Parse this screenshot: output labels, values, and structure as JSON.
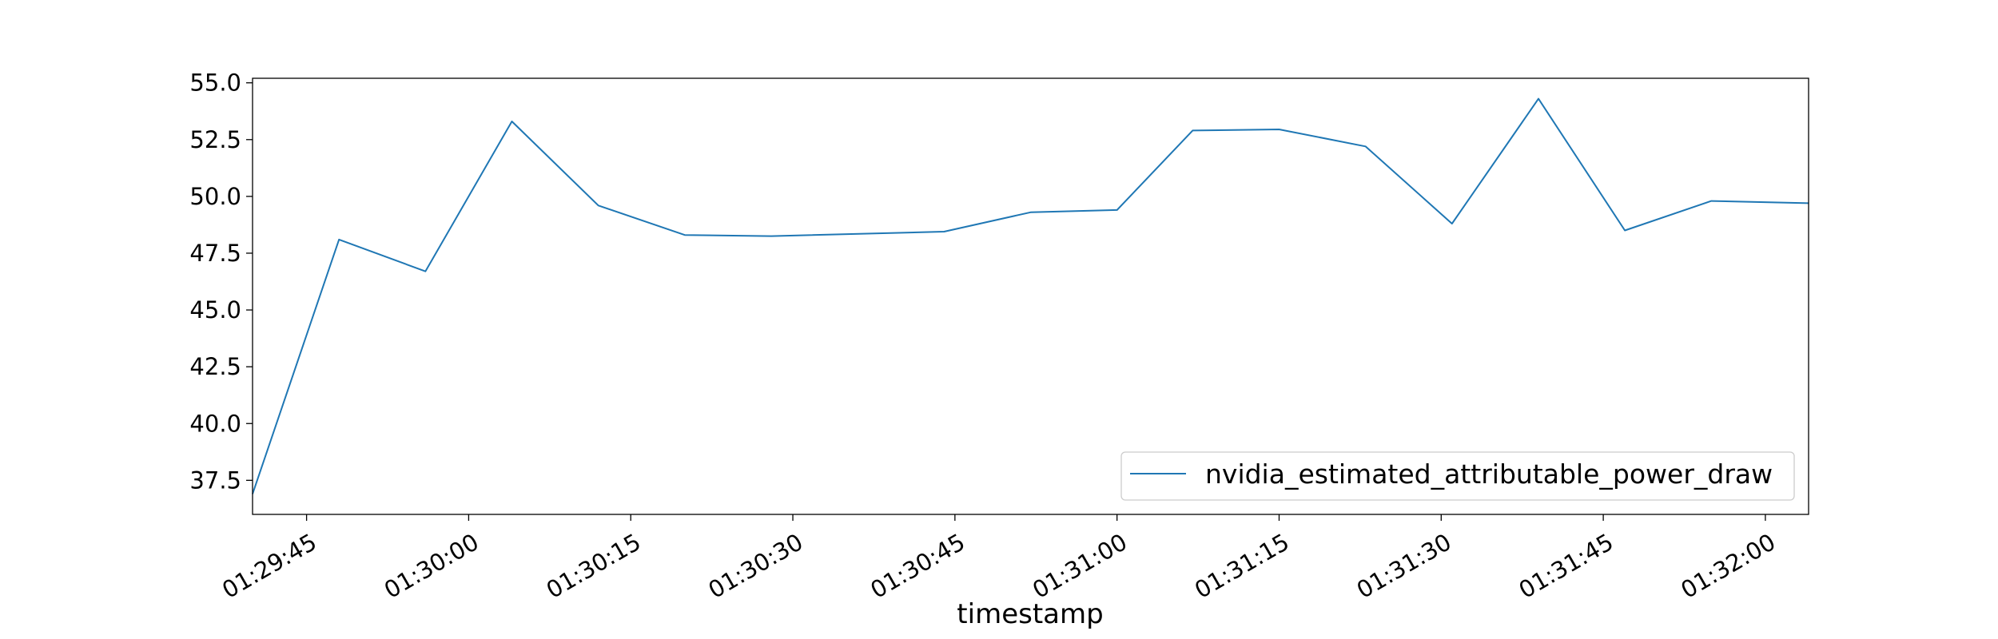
{
  "chart_data": {
    "type": "line",
    "title": "",
    "xlabel": "timestamp",
    "ylabel": "",
    "x_range": [
      "01:29:40",
      "01:32:04"
    ],
    "ylim": [
      36.0,
      55.2
    ],
    "x_ticks": [
      "01:29:45",
      "01:30:00",
      "01:30:15",
      "01:30:30",
      "01:30:45",
      "01:31:00",
      "01:31:15",
      "01:31:30",
      "01:31:45",
      "01:32:00"
    ],
    "y_ticks": [
      37.5,
      40.0,
      42.5,
      45.0,
      47.5,
      50.0,
      52.5,
      55.0
    ],
    "grid": false,
    "legend": "lower-right",
    "series": [
      {
        "name": "nvidia_estimated_attributable_power_draw",
        "color": "#1f77b4",
        "points": [
          [
            "01:29:40",
            36.9
          ],
          [
            "01:29:48",
            48.1
          ],
          [
            "01:29:56",
            46.7
          ],
          [
            "01:30:04",
            53.3
          ],
          [
            "01:30:12",
            49.6
          ],
          [
            "01:30:20",
            48.3
          ],
          [
            "01:30:28",
            48.25
          ],
          [
            "01:30:44",
            48.45
          ],
          [
            "01:30:52",
            49.3
          ],
          [
            "01:31:00",
            49.4
          ],
          [
            "01:31:07",
            52.9
          ],
          [
            "01:31:15",
            52.95
          ],
          [
            "01:31:23",
            52.2
          ],
          [
            "01:31:31",
            48.8
          ],
          [
            "01:31:39",
            54.3
          ],
          [
            "01:31:47",
            48.5
          ],
          [
            "01:31:55",
            49.8
          ],
          [
            "01:32:04",
            49.7
          ]
        ]
      }
    ]
  }
}
